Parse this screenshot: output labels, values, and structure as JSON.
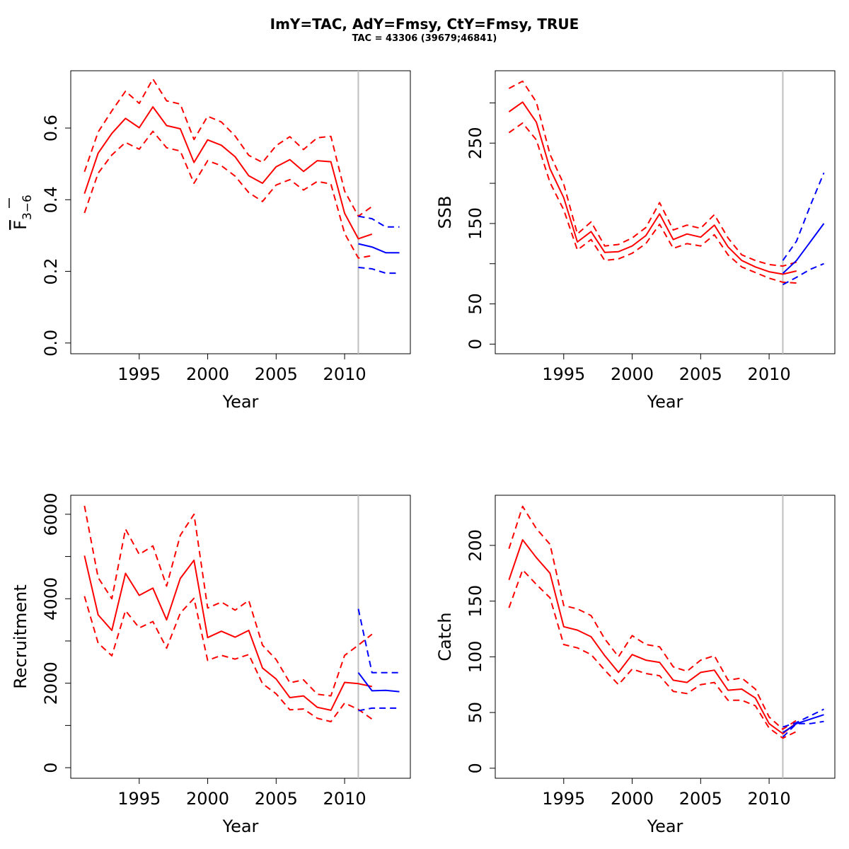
{
  "title": "ImY=TAC, AdY=Fmsy, CtY=Fmsy, TRUE",
  "subtitle": "TAC = 43306 (39679;46841)",
  "colors": {
    "historical": "#ff0000",
    "forecast": "#0000ff",
    "divider": "#bebebe"
  },
  "chart_data": [
    {
      "type": "line",
      "xlabel": "Year",
      "ylabel": "F̅3−6",
      "ylabel_main": "F",
      "ylabel_sub": "3−6",
      "xlim": [
        1990,
        2014.8
      ],
      "ylim": [
        -0.03,
        0.76
      ],
      "x_ticks": [
        1995,
        2000,
        2005,
        2010
      ],
      "x_tick_labels": [
        "1995",
        "2000",
        "2005",
        "2010"
      ],
      "y_ticks": [
        0,
        0.2,
        0.4,
        0.6
      ],
      "y_tick_labels": [
        "0.0",
        "0.2",
        "0.4",
        "0.6"
      ],
      "divider_x": 2011,
      "series": [
        {
          "role": "historical",
          "style": "solid",
          "x": [
            1991,
            1992,
            1993,
            1994,
            1995,
            1996,
            1997,
            1998,
            1999,
            2000,
            2001,
            2002,
            2003,
            2004,
            2005,
            2006,
            2007,
            2008,
            2009,
            2010,
            2011,
            2012
          ],
          "values": [
            0.417,
            0.53,
            0.585,
            0.627,
            0.601,
            0.659,
            0.607,
            0.598,
            0.504,
            0.567,
            0.552,
            0.52,
            0.467,
            0.446,
            0.492,
            0.512,
            0.479,
            0.509,
            0.506,
            0.362,
            0.291,
            0.304
          ]
        },
        {
          "role": "historical",
          "style": "dashed",
          "x": [
            1991,
            1992,
            1993,
            1994,
            1995,
            1996,
            1997,
            1998,
            1999,
            2000,
            2001,
            2002,
            2003,
            2004,
            2005,
            2006,
            2007,
            2008,
            2009,
            2010,
            2011,
            2012
          ],
          "values": [
            0.478,
            0.589,
            0.648,
            0.703,
            0.669,
            0.737,
            0.676,
            0.667,
            0.568,
            0.633,
            0.617,
            0.578,
            0.524,
            0.504,
            0.551,
            0.576,
            0.54,
            0.573,
            0.577,
            0.424,
            0.354,
            0.381
          ]
        },
        {
          "role": "historical",
          "style": "dashed",
          "x": [
            1991,
            1992,
            1993,
            1994,
            1995,
            1996,
            1997,
            1998,
            1999,
            2000,
            2001,
            2002,
            2003,
            2004,
            2005,
            2006,
            2007,
            2008,
            2009,
            2010,
            2011,
            2012
          ],
          "values": [
            0.363,
            0.474,
            0.525,
            0.56,
            0.541,
            0.591,
            0.545,
            0.536,
            0.446,
            0.509,
            0.495,
            0.466,
            0.42,
            0.395,
            0.441,
            0.456,
            0.427,
            0.451,
            0.444,
            0.306,
            0.237,
            0.244
          ]
        },
        {
          "role": "forecast",
          "style": "solid",
          "x": [
            2011,
            2012,
            2013,
            2014
          ],
          "values": [
            0.277,
            0.268,
            0.252,
            0.252
          ]
        },
        {
          "role": "forecast",
          "style": "dashed",
          "x": [
            2011,
            2012,
            2013,
            2014
          ],
          "values": [
            0.354,
            0.347,
            0.324,
            0.324
          ]
        },
        {
          "role": "forecast",
          "style": "dashed",
          "x": [
            2011,
            2012,
            2013,
            2014
          ],
          "values": [
            0.211,
            0.207,
            0.195,
            0.195
          ]
        }
      ]
    },
    {
      "type": "line",
      "xlabel": "Year",
      "ylabel": "SSB",
      "xlim": [
        1990,
        2014.8
      ],
      "ylim": [
        -12,
        340
      ],
      "x_ticks": [
        1995,
        2000,
        2005,
        2010
      ],
      "x_tick_labels": [
        "1995",
        "2000",
        "2005",
        "2010"
      ],
      "y_ticks": [
        0,
        50,
        100,
        150,
        200,
        250,
        300
      ],
      "y_tick_labels": [
        "0",
        "50",
        "",
        "150",
        "",
        "250",
        ""
      ],
      "divider_x": 2011,
      "series": [
        {
          "role": "historical",
          "style": "solid",
          "x": [
            1991,
            1992,
            1993,
            1994,
            1995,
            1996,
            1997,
            1998,
            1999,
            2000,
            2001,
            2002,
            2003,
            2004,
            2005,
            2006,
            2007,
            2008,
            2009,
            2010,
            2011,
            2012
          ],
          "values": [
            289,
            301,
            276,
            218,
            182,
            127,
            140,
            114,
            115,
            122,
            135,
            162,
            130,
            137,
            133,
            148,
            121,
            104,
            96,
            90,
            87,
            91
          ]
        },
        {
          "role": "historical",
          "style": "dashed",
          "x": [
            1991,
            1992,
            1993,
            1994,
            1995,
            1996,
            1997,
            1998,
            1999,
            2000,
            2001,
            2002,
            2003,
            2004,
            2005,
            2006,
            2007,
            2008,
            2009,
            2010,
            2011,
            2012
          ],
          "values": [
            318,
            327,
            301,
            236,
            199,
            137,
            152,
            122,
            124,
            132,
            145,
            176,
            142,
            148,
            144,
            161,
            132,
            111,
            104,
            99,
            97,
            102
          ]
        },
        {
          "role": "historical",
          "style": "dashed",
          "x": [
            1991,
            1992,
            1993,
            1994,
            1995,
            1996,
            1997,
            1998,
            1999,
            2000,
            2001,
            2002,
            2003,
            2004,
            2005,
            2006,
            2007,
            2008,
            2009,
            2010,
            2011,
            2012
          ],
          "values": [
            263,
            275,
            254,
            201,
            167,
            117,
            130,
            104,
            106,
            113,
            125,
            149,
            119,
            125,
            122,
            136,
            111,
            96,
            89,
            82,
            77,
            76
          ]
        },
        {
          "role": "forecast",
          "style": "solid",
          "x": [
            2011,
            2012,
            2013,
            2014
          ],
          "values": [
            88,
            104,
            127,
            150
          ]
        },
        {
          "role": "forecast",
          "style": "dashed",
          "x": [
            2011,
            2012,
            2013,
            2014
          ],
          "values": [
            104,
            128,
            172,
            213
          ]
        },
        {
          "role": "forecast",
          "style": "dashed",
          "x": [
            2011,
            2012,
            2013,
            2014
          ],
          "values": [
            74,
            83,
            93,
            100
          ]
        }
      ]
    },
    {
      "type": "line",
      "xlabel": "Year",
      "ylabel": "Recruitment",
      "xlim": [
        1990,
        2014.8
      ],
      "ylim": [
        -250,
        6450
      ],
      "x_ticks": [
        1995,
        2000,
        2005,
        2010
      ],
      "x_tick_labels": [
        "1995",
        "2000",
        "2005",
        "2010"
      ],
      "y_ticks": [
        0,
        1000,
        2000,
        3000,
        4000,
        5000,
        6000
      ],
      "y_tick_labels": [
        "0",
        "",
        "2000",
        "",
        "4000",
        "",
        "6000"
      ],
      "divider_x": 2011,
      "series": [
        {
          "role": "historical",
          "style": "solid",
          "x": [
            1991,
            1992,
            1993,
            1994,
            1995,
            1996,
            1997,
            1998,
            1999,
            2000,
            2001,
            2002,
            2003,
            2004,
            2005,
            2006,
            2007,
            2008,
            2009,
            2010,
            2011,
            2012
          ],
          "values": [
            5020,
            3620,
            3250,
            4600,
            4080,
            4250,
            3500,
            4480,
            4910,
            3080,
            3230,
            3090,
            3250,
            2360,
            2100,
            1660,
            1700,
            1430,
            1360,
            2020,
            1990,
            1920
          ]
        },
        {
          "role": "historical",
          "style": "dashed",
          "x": [
            1991,
            1992,
            1993,
            1994,
            1995,
            1996,
            1997,
            1998,
            1999,
            2000,
            2001,
            2002,
            2003,
            2004,
            2005,
            2006,
            2007,
            2008,
            2009,
            2010,
            2011,
            2012
          ],
          "values": [
            6200,
            4500,
            4000,
            5650,
            5050,
            5250,
            4300,
            5500,
            6000,
            3780,
            3920,
            3730,
            3960,
            2900,
            2560,
            2010,
            2080,
            1740,
            1700,
            2660,
            2900,
            3160
          ]
        },
        {
          "role": "historical",
          "style": "dashed",
          "x": [
            1991,
            1992,
            1993,
            1994,
            1995,
            1996,
            1997,
            1998,
            1999,
            2000,
            2001,
            2002,
            2003,
            2004,
            2005,
            2006,
            2007,
            2008,
            2009,
            2010,
            2011,
            2012
          ],
          "values": [
            4060,
            2950,
            2650,
            3720,
            3310,
            3460,
            2830,
            3660,
            4010,
            2540,
            2660,
            2570,
            2680,
            1990,
            1750,
            1370,
            1390,
            1170,
            1090,
            1530,
            1380,
            1150
          ]
        },
        {
          "role": "forecast",
          "style": "solid",
          "x": [
            2011,
            2012,
            2013,
            2014
          ],
          "values": [
            2250,
            1820,
            1830,
            1800
          ]
        },
        {
          "role": "forecast",
          "style": "dashed",
          "x": [
            2011,
            2012,
            2013,
            2014
          ],
          "values": [
            3760,
            2250,
            2250,
            2250
          ]
        },
        {
          "role": "forecast",
          "style": "dashed",
          "x": [
            2011,
            2012,
            2013,
            2014
          ],
          "values": [
            1350,
            1410,
            1410,
            1410
          ]
        }
      ]
    },
    {
      "type": "line",
      "xlabel": "Year",
      "ylabel": "Catch",
      "xlim": [
        1990,
        2014.8
      ],
      "ylim": [
        -9,
        245
      ],
      "x_ticks": [
        1995,
        2000,
        2005,
        2010
      ],
      "x_tick_labels": [
        "1995",
        "2000",
        "2005",
        "2010"
      ],
      "y_ticks": [
        0,
        50,
        100,
        150,
        200
      ],
      "y_tick_labels": [
        "0",
        "50",
        "100",
        "150",
        "200"
      ],
      "divider_x": 2011,
      "series": [
        {
          "role": "historical",
          "style": "solid",
          "x": [
            1991,
            1992,
            1993,
            1994,
            1995,
            1996,
            1997,
            1998,
            1999,
            2000,
            2001,
            2002,
            2003,
            2004,
            2005,
            2006,
            2007,
            2008,
            2009,
            2010,
            2011,
            2012
          ],
          "values": [
            169,
            205,
            189,
            175,
            127,
            124,
            118,
            101,
            86,
            102,
            97,
            95,
            79,
            77,
            86,
            88,
            70,
            71,
            63,
            40,
            31,
            41
          ]
        },
        {
          "role": "historical",
          "style": "dashed",
          "x": [
            1991,
            1992,
            1993,
            1994,
            1995,
            1996,
            1997,
            1998,
            1999,
            2000,
            2001,
            2002,
            2003,
            2004,
            2005,
            2006,
            2007,
            2008,
            2009,
            2010,
            2011,
            2012
          ],
          "values": [
            197,
            235,
            215,
            201,
            146,
            143,
            137,
            116,
            100,
            119,
            111,
            109,
            91,
            87,
            97,
            101,
            79,
            81,
            71,
            46,
            35,
            43
          ]
        },
        {
          "role": "historical",
          "style": "dashed",
          "x": [
            1991,
            1992,
            1993,
            1994,
            1995,
            1996,
            1997,
            1998,
            1999,
            2000,
            2001,
            2002,
            2003,
            2004,
            2005,
            2006,
            2007,
            2008,
            2009,
            2010,
            2011,
            2012
          ],
          "values": [
            144,
            178,
            165,
            153,
            111,
            108,
            102,
            88,
            75,
            89,
            85,
            83,
            69,
            67,
            75,
            77,
            61,
            61,
            56,
            36,
            27,
            33
          ]
        },
        {
          "role": "forecast",
          "style": "solid",
          "x": [
            2011,
            2012,
            2013,
            2014
          ],
          "values": [
            32,
            40,
            44,
            48
          ]
        },
        {
          "role": "forecast",
          "style": "dashed",
          "x": [
            2011,
            2012,
            2013,
            2014
          ],
          "values": [
            37,
            41,
            47,
            53
          ]
        },
        {
          "role": "forecast",
          "style": "dashed",
          "x": [
            2011,
            2012,
            2013,
            2014
          ],
          "values": [
            28,
            40,
            40,
            42
          ]
        }
      ]
    }
  ]
}
